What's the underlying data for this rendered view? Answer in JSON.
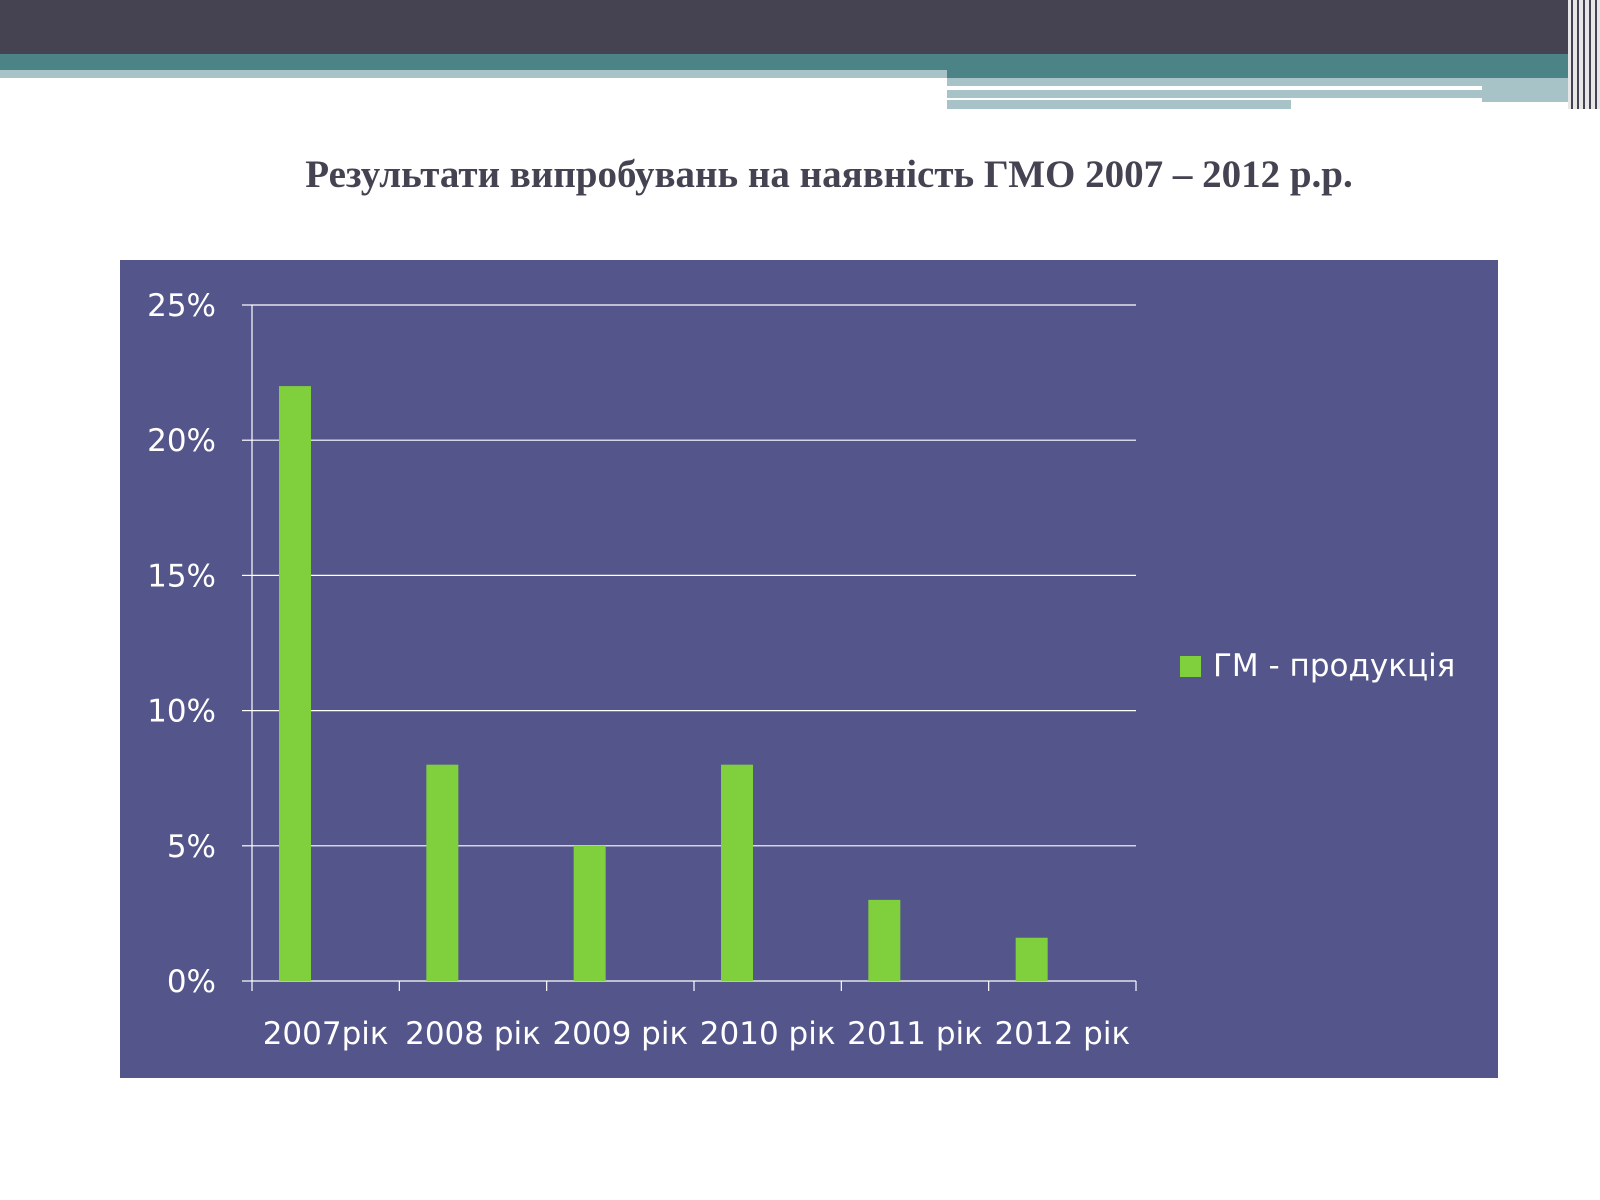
{
  "title": "Результати випробувань на наявність ГМО 2007 – 2012 р.р.",
  "colors": {
    "header": "#454252",
    "accent": "#4b8387",
    "pale": "#a7c3c7",
    "plot_bg": "#54558a",
    "bar": "#80d03d",
    "text": "#ffffff"
  },
  "chart_data": {
    "type": "bar",
    "categories": [
      "2007рік",
      "2008 рік",
      "2009 рік",
      "2010 рік",
      "2011 рік",
      "2012 рік"
    ],
    "series": [
      {
        "name": "ГМ - продукція",
        "values": [
          22,
          8,
          5,
          8,
          3,
          1.6
        ]
      }
    ],
    "yticks": [
      "0%",
      "5%",
      "10%",
      "15%",
      "20%",
      "25%"
    ],
    "ylim": [
      0,
      25
    ],
    "grid": true,
    "legend": "right",
    "title": "",
    "xlabel": "",
    "ylabel": ""
  }
}
